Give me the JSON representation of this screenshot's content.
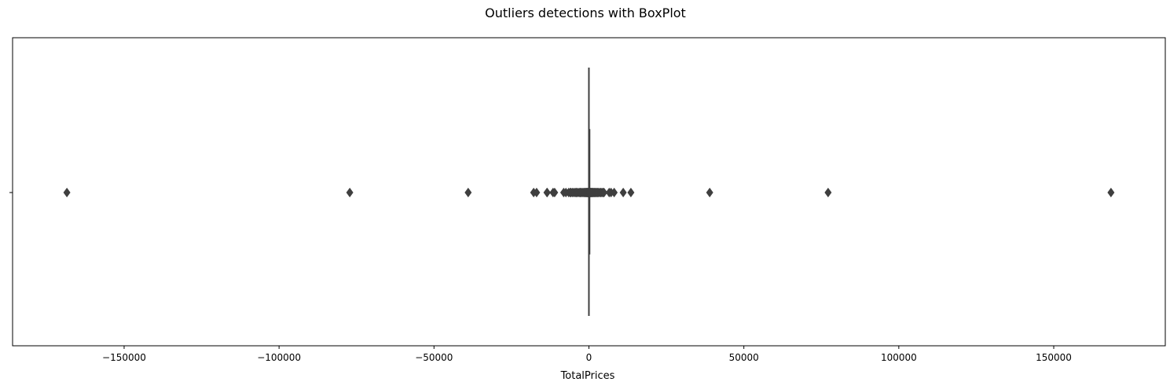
{
  "chart_data": {
    "type": "boxplot",
    "title": "Outliers detections with BoxPlot",
    "xlabel": "TotalPrices",
    "ylabel": "",
    "xlim": [
      -186000,
      186000
    ],
    "xticks": [
      -150000,
      -100000,
      -50000,
      0,
      50000,
      100000,
      150000
    ],
    "xtick_labels": [
      "−150000",
      "−100000",
      "−50000",
      "0",
      "50000",
      "100000",
      "150000"
    ],
    "grid": false,
    "legend": "none",
    "box": {
      "whisker_low": -60,
      "q1": 3,
      "median": 10,
      "q3": 18,
      "whisker_high": 40
    },
    "outliers": [
      -168470,
      -77184,
      -38970,
      -17836,
      -16888,
      -13541,
      -13475,
      -11586,
      -11062,
      -8143,
      -7427,
      -6539,
      -6040,
      -5876,
      -5411,
      -4992,
      -4505,
      -4161,
      -3949,
      -3516,
      -3097,
      -2766,
      -2503,
      -2157,
      -1867,
      -1522,
      -1236,
      -1034,
      -877,
      -673,
      -512,
      -404,
      -305,
      -206,
      -138,
      -85,
      95,
      148,
      215,
      304,
      420,
      560,
      708,
      894,
      1064,
      1269,
      1466,
      1712,
      1940,
      2195,
      2463,
      2771,
      3096,
      3452,
      3816,
      4173,
      4522,
      4869,
      6539,
      7144,
      8142,
      11062,
      13541,
      38970,
      77184,
      168470
    ],
    "colors": {
      "box_edge": "#3f3f3f",
      "box_fill": "#4c72b0",
      "outlier": "#3f3f3f"
    }
  }
}
